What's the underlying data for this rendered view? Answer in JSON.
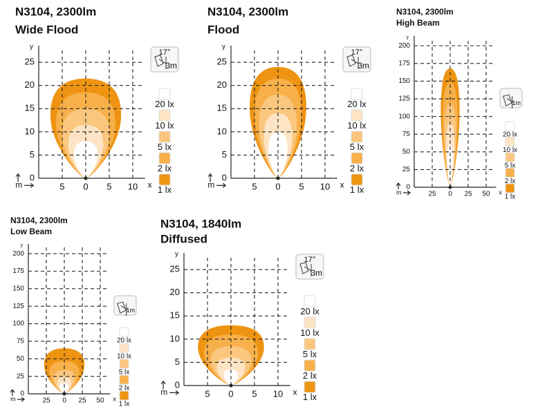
{
  "chart_data": [
    {
      "type": "isolux",
      "title": "N3104, 2300lm",
      "subtitle": "Wide Flood",
      "x_label": "x",
      "y_label": "y",
      "unit_label": "m",
      "xlim": [
        -10,
        12
      ],
      "xticks": [
        {
          "value": -5,
          "label": "5"
        },
        0,
        5,
        10
      ],
      "ylim": [
        0,
        28
      ],
      "yticks": [
        0,
        5,
        10,
        15,
        20,
        25
      ],
      "icon": {
        "angle": "17°",
        "distance": "3m"
      },
      "series": [
        {
          "name": "20 lx",
          "color": "#ffffff",
          "values": [
            2.5,
            8
          ]
        },
        {
          "name": "10 lx",
          "color": "#fde4c4",
          "values": [
            3.7,
            11.5
          ]
        },
        {
          "name": "5 lx",
          "color": "#fbc77f",
          "values": [
            5,
            15
          ]
        },
        {
          "name": "2 lx",
          "color": "#f7b04a",
          "values": [
            6.3,
            18.5
          ]
        },
        {
          "name": "1 lx",
          "color": "#ee9412",
          "values": [
            7.5,
            21.5
          ]
        }
      ]
    },
    {
      "type": "isolux",
      "title": "N3104, 2300lm",
      "subtitle": "Flood",
      "x_label": "x",
      "y_label": "y",
      "unit_label": "m",
      "xlim": [
        -10,
        12
      ],
      "xticks": [
        {
          "value": -5,
          "label": "5"
        },
        0,
        5,
        10
      ],
      "ylim": [
        0,
        28
      ],
      "yticks": [
        0,
        5,
        10,
        15,
        20,
        25
      ],
      "icon": {
        "angle": "17°",
        "distance": "3m"
      },
      "series": [
        {
          "name": "20 lx",
          "color": "#ffffff",
          "values": [
            2,
            10
          ]
        },
        {
          "name": "10 lx",
          "color": "#fde4c4",
          "values": [
            3,
            14
          ]
        },
        {
          "name": "5 lx",
          "color": "#fbc77f",
          "values": [
            4,
            18
          ]
        },
        {
          "name": "2 lx",
          "color": "#f7b04a",
          "values": [
            5,
            21.5
          ]
        },
        {
          "name": "1 lx",
          "color": "#ee9412",
          "values": [
            6,
            24
          ]
        }
      ]
    },
    {
      "type": "isolux",
      "title": "N3104, 2300lm",
      "subtitle": "High Beam",
      "x_label": "x",
      "y_label": "y",
      "unit_label": "m",
      "xlim": [
        -50,
        60
      ],
      "xticks": [
        {
          "value": -25,
          "label": "25"
        },
        0,
        25,
        50
      ],
      "ylim": [
        0,
        210
      ],
      "yticks": [
        0,
        25,
        50,
        75,
        100,
        125,
        150,
        175,
        200
      ],
      "icon": {
        "distance": "1m"
      },
      "series": [
        {
          "name": "20 lx",
          "color": "#ffffff",
          "values": [
            4,
            60
          ]
        },
        {
          "name": "10 lx",
          "color": "#fde4c4",
          "values": [
            6,
            90
          ]
        },
        {
          "name": "5 lx",
          "color": "#fbc77f",
          "values": [
            8,
            118
          ]
        },
        {
          "name": "2 lx",
          "color": "#f7b04a",
          "values": [
            10.5,
            148
          ]
        },
        {
          "name": "1 lx",
          "color": "#ee9412",
          "values": [
            13,
            168
          ]
        }
      ]
    },
    {
      "type": "isolux",
      "title": "N3104, 2300lm",
      "subtitle": "Low Beam",
      "x_label": "x",
      "y_label": "y",
      "unit_label": "m",
      "xlim": [
        -50,
        60
      ],
      "xticks": [
        {
          "value": -25,
          "label": "25"
        },
        0,
        25,
        50
      ],
      "ylim": [
        0,
        210
      ],
      "yticks": [
        0,
        25,
        50,
        75,
        100,
        125,
        150,
        175,
        200
      ],
      "icon": {
        "distance": "1m"
      },
      "series": [
        {
          "name": "20 lx",
          "color": "#ffffff",
          "values": [
            6,
            15
          ]
        },
        {
          "name": "10 lx",
          "color": "#fde4c4",
          "values": [
            10,
            24
          ]
        },
        {
          "name": "5 lx",
          "color": "#fbc77f",
          "values": [
            15,
            34
          ]
        },
        {
          "name": "2 lx",
          "color": "#f7b04a",
          "values": [
            21,
            47
          ]
        },
        {
          "name": "1 lx",
          "color": "#ee9412",
          "values": [
            28,
            65
          ]
        }
      ]
    },
    {
      "type": "isolux",
      "title": "N3104, 1840lm",
      "subtitle": "Diffused",
      "x_label": "x",
      "y_label": "y",
      "unit_label": "m",
      "xlim": [
        -10,
        12
      ],
      "xticks": [
        {
          "value": -5,
          "label": "5"
        },
        0,
        5,
        10
      ],
      "ylim": [
        0,
        28
      ],
      "yticks": [
        0,
        5,
        10,
        15,
        20,
        25
      ],
      "icon": {
        "angle": "17°",
        "distance": "3m"
      },
      "series": [
        {
          "name": "20 lx",
          "color": "#ffffff",
          "values": [
            1.5,
            3.5
          ]
        },
        {
          "name": "10 lx",
          "color": "#fde4c4",
          "values": [
            3,
            6
          ]
        },
        {
          "name": "5 lx",
          "color": "#fbc77f",
          "values": [
            4.3,
            8.5
          ]
        },
        {
          "name": "2 lx",
          "color": "#f7b04a",
          "values": [
            5.7,
            11
          ]
        },
        {
          "name": "1 lx",
          "color": "#ee9412",
          "values": [
            7,
            13
          ]
        }
      ]
    }
  ]
}
